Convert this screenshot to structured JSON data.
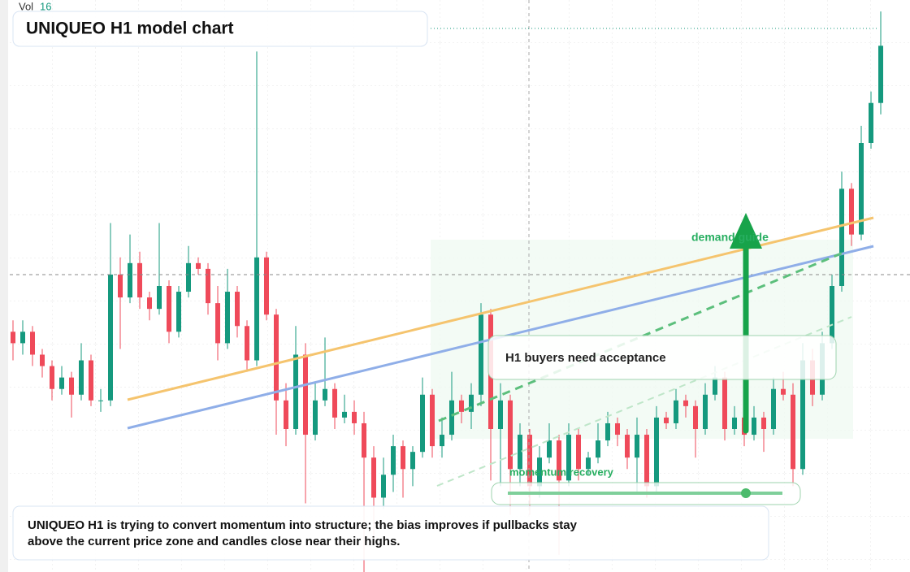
{
  "chart_data": {
    "type": "candlestick",
    "title": "UNIQUEO H1 model chart",
    "vol_label": "Vol",
    "vol_value": "16",
    "annotations": [
      "demand guide",
      "H1 buyers need acceptance",
      "momentum recovery"
    ],
    "caption": "UNIQUEO H1 is trying to convert momentum into structure; the bias improves if pullbacks stay above the current price zone and candles close near their highs.",
    "up_color": "#15997e",
    "down_color": "#ef4a5a",
    "ylim": [
      0,
      100
    ],
    "ohlc": [
      [
        42,
        44,
        37,
        40
      ],
      [
        40,
        44,
        38,
        42
      ],
      [
        42,
        43,
        36,
        38
      ],
      [
        38,
        39,
        34,
        36
      ],
      [
        36,
        37,
        30,
        32
      ],
      [
        32,
        36,
        31,
        34
      ],
      [
        34,
        35,
        27,
        31
      ],
      [
        31,
        40,
        30,
        37
      ],
      [
        37,
        38,
        29,
        30
      ],
      [
        30,
        32,
        28,
        30
      ],
      [
        30,
        61,
        29,
        52
      ],
      [
        52,
        55,
        39,
        48
      ],
      [
        48,
        59,
        47,
        54
      ],
      [
        54,
        56,
        46,
        48
      ],
      [
        48,
        49,
        44,
        46
      ],
      [
        46,
        61,
        45,
        50
      ],
      [
        50,
        51,
        40,
        42
      ],
      [
        42,
        50,
        41,
        49
      ],
      [
        49,
        57,
        48,
        54
      ],
      [
        54,
        55,
        52,
        53
      ],
      [
        53,
        54,
        45,
        47
      ],
      [
        47,
        50,
        37,
        40
      ],
      [
        40,
        53,
        39,
        49
      ],
      [
        49,
        50,
        41,
        43
      ],
      [
        43,
        44,
        35,
        37
      ],
      [
        37,
        91,
        36,
        55
      ],
      [
        55,
        56,
        44,
        45
      ],
      [
        45,
        46,
        24,
        30
      ],
      [
        30,
        33,
        22,
        25
      ],
      [
        25,
        43,
        24,
        38
      ],
      [
        38,
        40,
        12,
        24
      ],
      [
        24,
        33,
        23,
        30
      ],
      [
        30,
        41,
        29,
        32
      ],
      [
        32,
        33,
        25,
        27
      ],
      [
        27,
        31,
        26,
        28
      ],
      [
        28,
        30,
        24,
        26
      ],
      [
        26,
        28,
        0,
        20
      ],
      [
        20,
        22,
        5,
        13
      ],
      [
        13,
        20,
        11,
        17
      ],
      [
        17,
        24,
        14,
        22
      ],
      [
        22,
        23,
        13,
        18
      ],
      [
        18,
        22,
        15,
        21
      ],
      [
        21,
        34,
        20,
        31
      ],
      [
        31,
        32,
        20,
        22
      ],
      [
        22,
        27,
        20,
        24
      ],
      [
        24,
        35,
        23,
        30
      ],
      [
        30,
        31,
        26,
        28
      ],
      [
        28,
        33,
        25,
        31
      ],
      [
        31,
        47,
        29,
        45
      ],
      [
        45,
        46,
        16,
        25
      ],
      [
        25,
        33,
        15,
        30
      ],
      [
        30,
        31,
        10,
        18
      ],
      [
        18,
        26,
        15,
        24
      ],
      [
        24,
        25,
        10,
        15
      ],
      [
        15,
        22,
        13,
        20
      ],
      [
        20,
        26,
        19,
        23
      ],
      [
        23,
        24,
        3,
        16
      ],
      [
        16,
        26,
        15,
        24
      ],
      [
        24,
        25,
        16,
        18
      ],
      [
        18,
        21,
        17,
        20
      ],
      [
        20,
        26,
        19,
        23
      ],
      [
        23,
        28,
        22,
        26
      ],
      [
        26,
        27,
        22,
        24
      ],
      [
        24,
        25,
        18,
        20
      ],
      [
        20,
        27,
        14,
        24
      ],
      [
        24,
        25,
        13,
        15
      ],
      [
        15,
        29,
        14,
        27
      ],
      [
        27,
        28,
        25,
        26
      ],
      [
        26,
        32,
        25,
        30
      ],
      [
        30,
        31,
        27,
        29
      ],
      [
        29,
        30,
        20,
        25
      ],
      [
        25,
        33,
        24,
        31
      ],
      [
        31,
        36,
        30,
        34
      ],
      [
        34,
        35,
        23,
        25
      ],
      [
        25,
        29,
        24,
        27
      ],
      [
        27,
        28,
        22,
        24
      ],
      [
        24,
        29,
        23,
        27
      ],
      [
        27,
        28,
        21,
        25
      ],
      [
        25,
        34,
        24,
        32
      ],
      [
        32,
        35,
        30,
        31
      ],
      [
        31,
        33,
        15,
        18
      ],
      [
        18,
        40,
        17,
        37
      ],
      [
        37,
        39,
        29,
        31
      ],
      [
        31,
        42,
        30,
        40
      ],
      [
        40,
        52,
        39,
        50
      ],
      [
        50,
        70,
        49,
        67
      ],
      [
        67,
        68,
        57,
        59
      ],
      [
        59,
        78,
        58,
        75
      ],
      [
        75,
        84,
        74,
        82
      ],
      [
        82,
        98,
        80,
        92
      ]
    ]
  }
}
